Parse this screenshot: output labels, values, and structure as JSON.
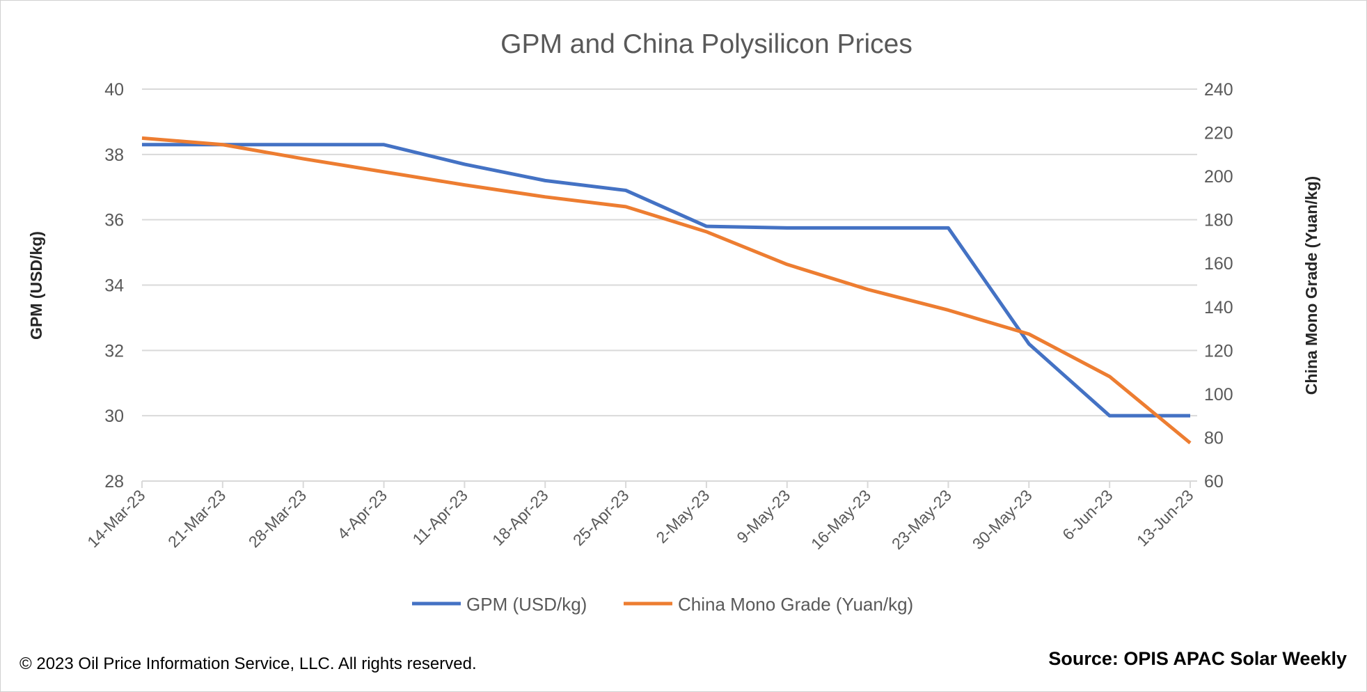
{
  "chart_data": {
    "type": "line",
    "title": "GPM and China Polysilicon Prices",
    "categories": [
      "14-Mar-23",
      "21-Mar-23",
      "28-Mar-23",
      "4-Apr-23",
      "11-Apr-23",
      "18-Apr-23",
      "25-Apr-23",
      "2-May-23",
      "9-May-23",
      "16-May-23",
      "23-May-23",
      "30-May-23",
      "6-Jun-23",
      "13-Jun-23"
    ],
    "y_left": {
      "label": "GPM (USD/kg)",
      "range": [
        28,
        40
      ],
      "ticks": [
        28,
        30,
        32,
        34,
        36,
        38,
        40
      ]
    },
    "y_right": {
      "label": "China Mono Grade (Yuan/kg)",
      "range": [
        60,
        240
      ],
      "ticks": [
        60,
        80,
        100,
        120,
        140,
        160,
        180,
        200,
        220,
        240
      ]
    },
    "grid": true,
    "legend": "bottom",
    "series": [
      {
        "name": "GPM (USD/kg)",
        "axis": "left",
        "color": "#4472C4",
        "values": [
          38.3,
          38.3,
          38.3,
          38.3,
          37.7,
          37.2,
          36.9,
          35.8,
          35.75,
          35.75,
          35.75,
          32.2,
          30.0,
          30.0
        ]
      },
      {
        "name": "China Mono Grade (Yuan/kg)",
        "axis": "right",
        "color": "#ED7D31",
        "values": [
          217.5,
          214.5,
          208,
          202,
          196,
          190.5,
          186,
          174.5,
          159.5,
          148,
          138.5,
          127.5,
          108,
          77.5
        ]
      }
    ]
  },
  "footer": {
    "copyright": "© 2023 Oil Price Information Service, LLC. All rights reserved.",
    "source": "Source: OPIS APAC Solar Weekly"
  }
}
